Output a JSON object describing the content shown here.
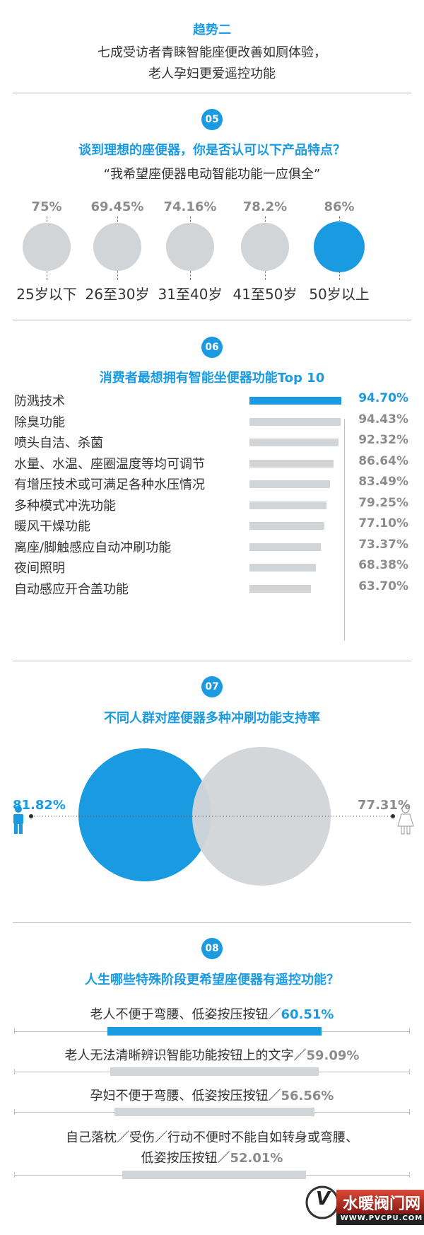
{
  "trend": {
    "title": "趋势二",
    "line1": "七成受访者青睐智能座便改善如厕体验，",
    "line2": "老人孕妇更爱遥控功能"
  },
  "s05": {
    "badge": "05",
    "question": "谈到理想的座便器，你是否认可以下产品特点？",
    "quote": "“我希望座便器电动智能功能一应俱全”"
  },
  "s06": {
    "badge": "06",
    "title": "消费者最想拥有智能坐便器功能Top 10"
  },
  "s07": {
    "badge": "07",
    "title": "不同人群对座便器多种冲刷功能支持率",
    "male_pct": "81.82%",
    "female_pct": "77.31%"
  },
  "s08": {
    "badge": "08",
    "title": "人生哪些特殊阶段更希望座便器有遥控功能？"
  },
  "colors": {
    "accent": "#1a9ae0",
    "muted": "#d2d5d7",
    "text": "#333333",
    "pct_grey": "#8c8c8c"
  },
  "logo": {
    "text": "水暖阀门网",
    "url": "WWW.PVCPU.COM",
    "mark": "V"
  },
  "chart_data": [
    {
      "type": "bubble",
      "title": "谈到理想的座便器，你是否认可以下产品特点？",
      "subtitle": "“我希望座便器电动智能功能一应俱全”",
      "categories": [
        "25岁以下",
        "26至30岁",
        "31至40岁",
        "41至50岁",
        "50岁以上"
      ],
      "labels": [
        "75%",
        "69.45%",
        "74.16%",
        "78.2%",
        "86%"
      ],
      "values": [
        75,
        69.45,
        74.16,
        78.2,
        86
      ],
      "highlight_index": 4
    },
    {
      "type": "bar",
      "orientation": "horizontal",
      "title": "消费者最想拥有智能坐便器功能Top 10",
      "categories": [
        "防溅技术",
        "除臭功能",
        "喷头自洁、杀菌",
        "水量、水温、座圈温度等均可调节",
        "有增压技术或可满足各种水压情况",
        "多种模式冲洗功能",
        "暖风干燥功能",
        "离座/脚触感应自动冲刷功能",
        "夜间照明",
        "自动感应开合盖功能"
      ],
      "labels": [
        "94.70%",
        "94.43%",
        "92.32%",
        "86.64%",
        "83.49%",
        "79.25%",
        "77.10%",
        "73.37%",
        "68.38%",
        "63.70%"
      ],
      "values": [
        94.7,
        94.43,
        92.32,
        86.64,
        83.49,
        79.25,
        77.1,
        73.37,
        68.38,
        63.7
      ],
      "highlight_index": 0
    },
    {
      "type": "venn",
      "title": "不同人群对座便器多种冲刷功能支持率",
      "labels": [
        "81.82%",
        "77.31%"
      ],
      "values": [
        81.82,
        77.31
      ],
      "icons": [
        "male-icon",
        "female-icon"
      ]
    },
    {
      "type": "bar",
      "orientation": "horizontal-centered",
      "title": "人生哪些特殊阶段更希望座便器有遥控功能？",
      "items": [
        {
          "lines": [
            "老人不便于弯腰、低姿按压按钮／"
          ],
          "label": "60.51%",
          "value": 60.51
        },
        {
          "lines": [
            "老人无法清晰辨识智能功能按钮上的文字／"
          ],
          "label": "59.09%",
          "value": 59.09
        },
        {
          "lines": [
            "孕妇不便于弯腰、低姿按压按钮／"
          ],
          "label": "56.56%",
          "value": 56.56
        },
        {
          "lines": [
            "自己落枕／受伤／行动不便时不能自如转身或弯腰、",
            "低姿按压按钮／"
          ],
          "label": "52.01%",
          "value": 52.01
        }
      ],
      "highlight_index": 0
    }
  ]
}
